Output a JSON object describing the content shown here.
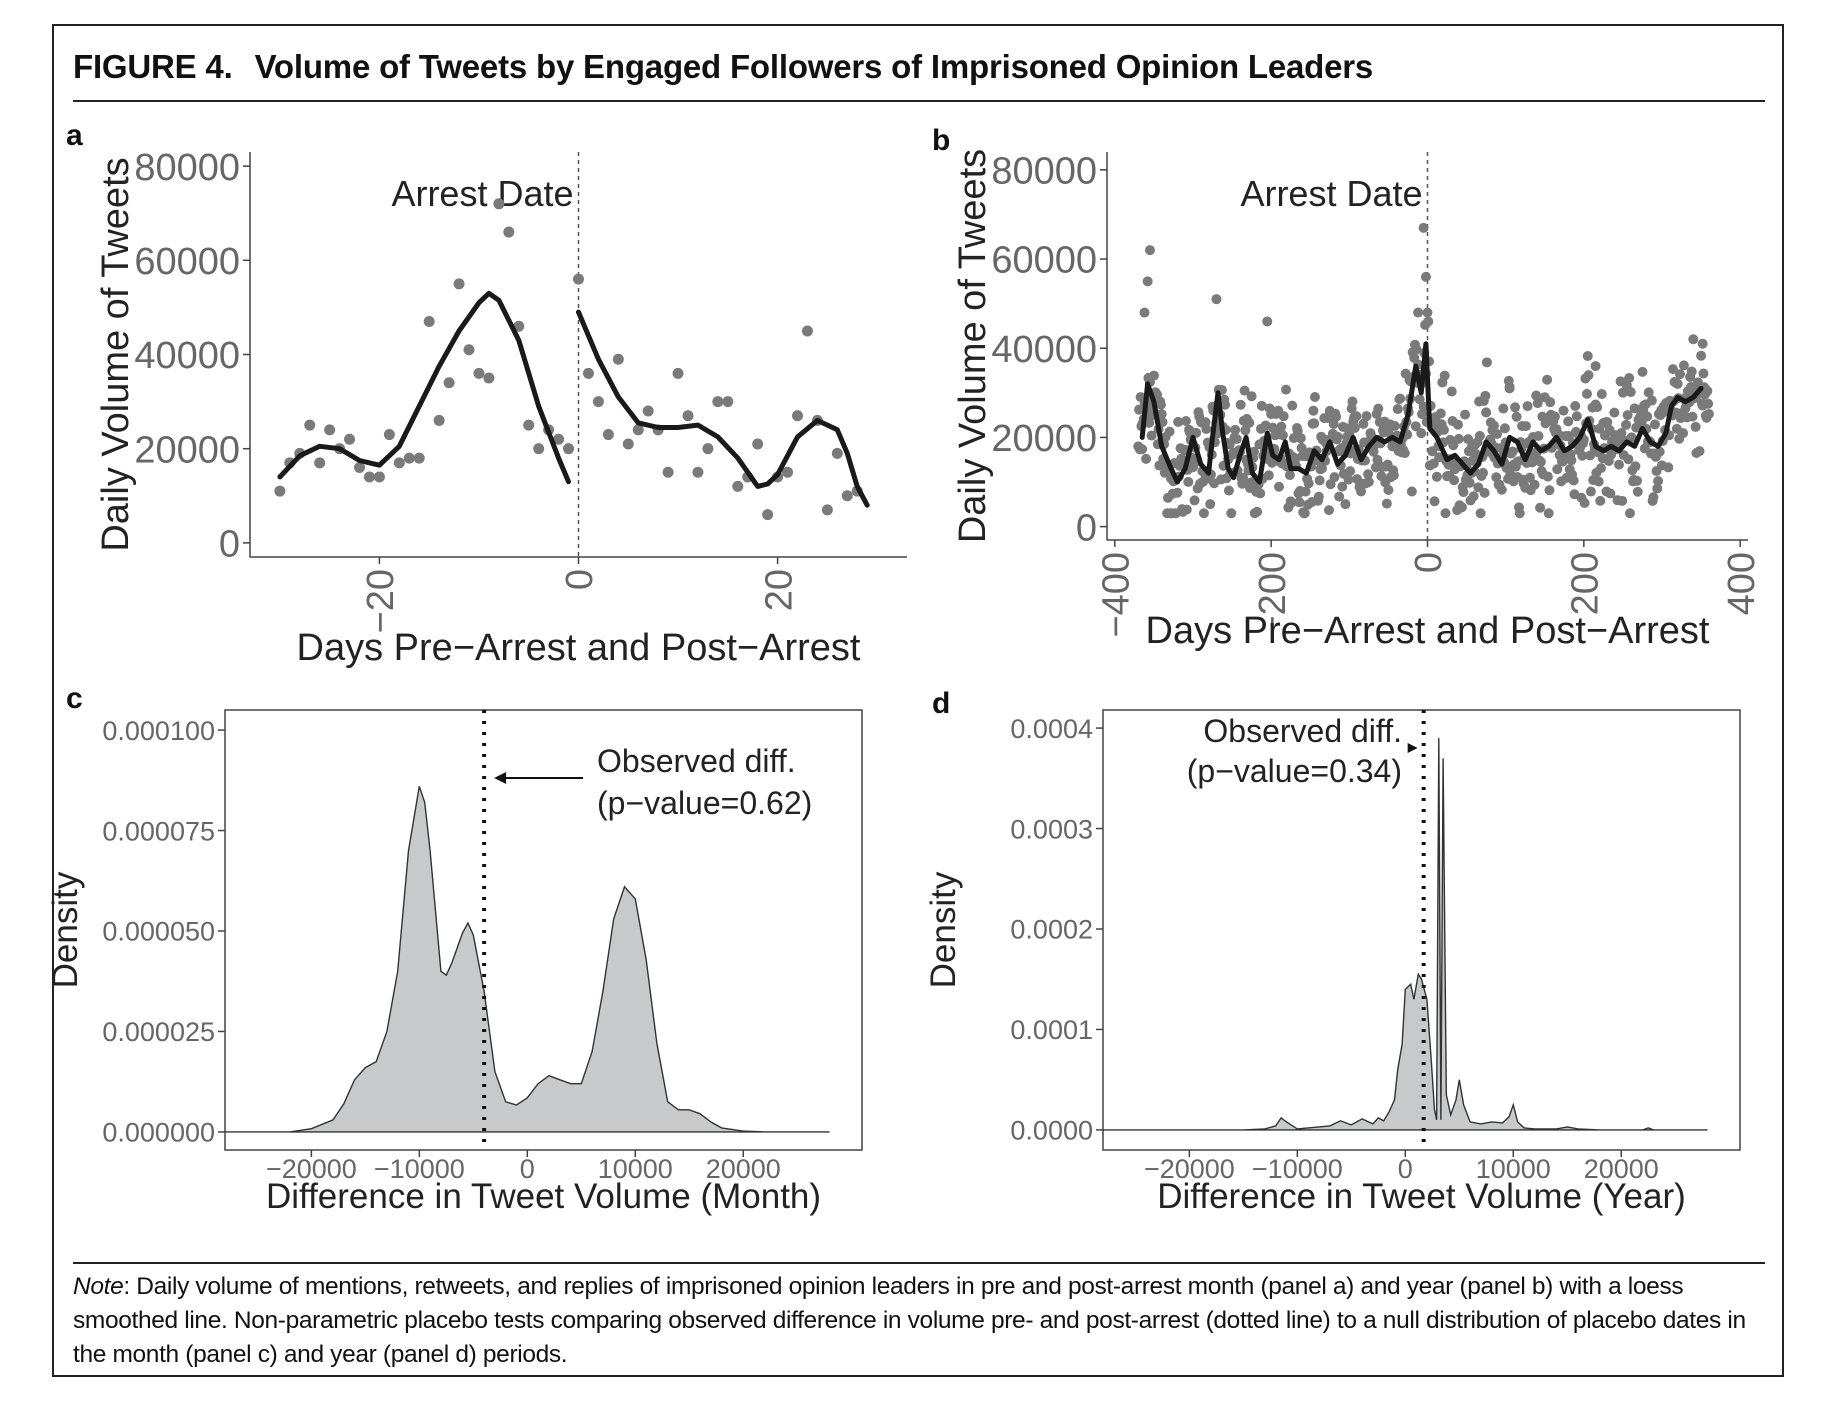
{
  "figure": {
    "label": "FIGURE 4.",
    "title": "Volume of Tweets by Engaged Followers of Imprisoned Opinion Leaders",
    "note_lead": "Note",
    "note_text": ": Daily volume of mentions, retweets, and replies of imprisoned opinion leaders in pre and post-arrest month (panel a) and year (panel b) with a loess smoothed line. Non-parametric placebo tests comparing observed difference in volume pre- and post-arrest (dotted line) to a null distribution of placebo dates in the month (panel c) and year (panel d) periods."
  },
  "chart_data": [
    {
      "panel": "a",
      "type": "scatter",
      "annotation": "Arrest Date",
      "xlabel": "Days Pre−Arrest and Post−Arrest",
      "ylabel": "Daily Volume of Tweets",
      "xlim": [
        -33,
        33
      ],
      "ylim": [
        -3000,
        83000
      ],
      "xticks": [
        -20,
        0,
        20
      ],
      "xtick_labels": [
        "−20",
        "0",
        "20"
      ],
      "yticks": [
        0,
        20000,
        40000,
        60000,
        80000
      ],
      "ytick_labels": [
        "0",
        "20000",
        "40000",
        "60000",
        "80000"
      ],
      "vline_x": 0,
      "grid": false,
      "points": [
        [
          -30,
          11000
        ],
        [
          -29,
          17000
        ],
        [
          -28,
          19000
        ],
        [
          -27,
          25000
        ],
        [
          -26,
          17000
        ],
        [
          -25,
          24000
        ],
        [
          -24,
          20000
        ],
        [
          -23,
          22000
        ],
        [
          -22,
          16000
        ],
        [
          -21,
          14000
        ],
        [
          -20,
          14000
        ],
        [
          -19,
          23000
        ],
        [
          -18,
          17000
        ],
        [
          -17,
          18000
        ],
        [
          -16,
          18000
        ],
        [
          -15,
          47000
        ],
        [
          -14,
          26000
        ],
        [
          -13,
          34000
        ],
        [
          -12,
          55000
        ],
        [
          -11,
          41000
        ],
        [
          -10,
          36000
        ],
        [
          -9,
          35000
        ],
        [
          -8,
          72000
        ],
        [
          -7,
          66000
        ],
        [
          -6,
          46000
        ],
        [
          -5,
          25000
        ],
        [
          -4,
          20000
        ],
        [
          -3,
          24000
        ],
        [
          -2,
          22000
        ],
        [
          -1,
          20000
        ],
        [
          0,
          56000
        ],
        [
          1,
          36000
        ],
        [
          2,
          30000
        ],
        [
          3,
          23000
        ],
        [
          4,
          39000
        ],
        [
          5,
          21000
        ],
        [
          6,
          24000
        ],
        [
          7,
          28000
        ],
        [
          8,
          24000
        ],
        [
          9,
          15000
        ],
        [
          10,
          36000
        ],
        [
          11,
          27000
        ],
        [
          12,
          15000
        ],
        [
          13,
          20000
        ],
        [
          14,
          30000
        ],
        [
          15,
          30000
        ],
        [
          16,
          12000
        ],
        [
          17,
          14000
        ],
        [
          18,
          21000
        ],
        [
          19,
          6000
        ],
        [
          20,
          14000
        ],
        [
          21,
          15000
        ],
        [
          22,
          27000
        ],
        [
          23,
          45000
        ],
        [
          24,
          26000
        ],
        [
          25,
          7000
        ],
        [
          26,
          19000
        ],
        [
          27,
          10000
        ],
        [
          28,
          11000
        ]
      ],
      "smooth_pre": [
        [
          -30,
          14000
        ],
        [
          -28,
          18500
        ],
        [
          -26,
          20500
        ],
        [
          -24,
          20000
        ],
        [
          -22,
          17500
        ],
        [
          -20,
          16500
        ],
        [
          -18,
          20500
        ],
        [
          -16,
          29000
        ],
        [
          -14,
          37500
        ],
        [
          -12,
          45000
        ],
        [
          -10,
          51000
        ],
        [
          -9,
          53000
        ],
        [
          -8,
          51500
        ],
        [
          -6,
          43000
        ],
        [
          -4,
          29000
        ],
        [
          -2,
          18000
        ],
        [
          -1,
          13000
        ]
      ],
      "smooth_post": [
        [
          0,
          49000
        ],
        [
          2,
          39000
        ],
        [
          4,
          31000
        ],
        [
          6,
          25500
        ],
        [
          8,
          24500
        ],
        [
          10,
          24500
        ],
        [
          12,
          25000
        ],
        [
          14,
          22500
        ],
        [
          16,
          18000
        ],
        [
          18,
          12000
        ],
        [
          19,
          12500
        ],
        [
          20,
          14500
        ],
        [
          22,
          22500
        ],
        [
          24,
          26000
        ],
        [
          26,
          24000
        ],
        [
          27,
          19000
        ],
        [
          28,
          12000
        ],
        [
          29,
          8000
        ]
      ]
    },
    {
      "panel": "b",
      "type": "scatter",
      "annotation": "Arrest Date",
      "xlabel": "Days Pre−Arrest and Post−Arrest",
      "ylabel": "Daily Volume of Tweets",
      "xlim": [
        -410,
        410
      ],
      "ylim": [
        -3000,
        84000
      ],
      "xticks": [
        -400,
        -200,
        0,
        200,
        400
      ],
      "xtick_labels": [
        "−400",
        "−200",
        "0",
        "200",
        "400"
      ],
      "yticks": [
        0,
        20000,
        40000,
        60000,
        80000
      ],
      "ytick_labels": [
        "0",
        "20000",
        "40000",
        "60000",
        "80000"
      ],
      "vline_x": 0,
      "grid": false,
      "point_range": {
        "x": [
          -370,
          360
        ],
        "y": [
          3000,
          62000
        ]
      },
      "smooth": [
        [
          -365,
          20000
        ],
        [
          -358,
          32000
        ],
        [
          -350,
          28000
        ],
        [
          -340,
          18000
        ],
        [
          -328,
          13000
        ],
        [
          -320,
          10000
        ],
        [
          -310,
          13000
        ],
        [
          -300,
          20000
        ],
        [
          -290,
          14000
        ],
        [
          -280,
          12000
        ],
        [
          -275,
          20000
        ],
        [
          -268,
          30000
        ],
        [
          -262,
          21000
        ],
        [
          -255,
          13000
        ],
        [
          -248,
          11000
        ],
        [
          -240,
          16000
        ],
        [
          -232,
          20000
        ],
        [
          -224,
          12000
        ],
        [
          -215,
          10000
        ],
        [
          -205,
          21000
        ],
        [
          -198,
          16000
        ],
        [
          -190,
          15000
        ],
        [
          -182,
          19000
        ],
        [
          -175,
          13000
        ],
        [
          -165,
          13000
        ],
        [
          -155,
          12000
        ],
        [
          -145,
          17000
        ],
        [
          -135,
          15000
        ],
        [
          -125,
          19000
        ],
        [
          -115,
          14000
        ],
        [
          -105,
          16000
        ],
        [
          -95,
          20000
        ],
        [
          -85,
          15000
        ],
        [
          -75,
          18000
        ],
        [
          -65,
          20000
        ],
        [
          -55,
          19000
        ],
        [
          -45,
          20000
        ],
        [
          -35,
          19000
        ],
        [
          -25,
          25000
        ],
        [
          -15,
          36000
        ],
        [
          -8,
          30000
        ],
        [
          -2,
          41000
        ],
        [
          3,
          22000
        ],
        [
          12,
          20000
        ],
        [
          25,
          15000
        ],
        [
          35,
          16000
        ],
        [
          45,
          14000
        ],
        [
          55,
          12000
        ],
        [
          65,
          14000
        ],
        [
          75,
          19000
        ],
        [
          85,
          17000
        ],
        [
          95,
          14000
        ],
        [
          105,
          20000
        ],
        [
          115,
          19000
        ],
        [
          125,
          15000
        ],
        [
          135,
          19000
        ],
        [
          145,
          17000
        ],
        [
          155,
          18000
        ],
        [
          165,
          20000
        ],
        [
          175,
          17000
        ],
        [
          185,
          18000
        ],
        [
          195,
          20000
        ],
        [
          205,
          24000
        ],
        [
          215,
          18000
        ],
        [
          225,
          17000
        ],
        [
          235,
          18000
        ],
        [
          245,
          17000
        ],
        [
          255,
          19000
        ],
        [
          265,
          18000
        ],
        [
          275,
          22000
        ],
        [
          285,
          19000
        ],
        [
          295,
          18000
        ],
        [
          305,
          21000
        ],
        [
          312,
          27000
        ],
        [
          320,
          29000
        ],
        [
          330,
          28000
        ],
        [
          340,
          29000
        ],
        [
          350,
          31000
        ]
      ]
    },
    {
      "panel": "c",
      "type": "area",
      "annotation": "Observed diff.\n(p−value=0.62)",
      "xlabel": "Difference in Tweet Volume (Month)",
      "ylabel": "Density",
      "xlim": [
        -28000,
        31000
      ],
      "ylim": [
        -4.5e-06,
        0.000105
      ],
      "xticks": [
        -20000,
        -10000,
        0,
        10000,
        20000
      ],
      "xtick_labels": [
        "−20000",
        "−10000",
        "0",
        "10000",
        "20000"
      ],
      "yticks": [
        0,
        2.5e-05,
        5e-05,
        7.5e-05,
        0.0001
      ],
      "ytick_labels": [
        "0.000000",
        "0.000025",
        "0.000050",
        "0.000075",
        "0.000100"
      ],
      "observed_x": -4000,
      "grid": false,
      "density": [
        [
          -28000,
          0
        ],
        [
          -25000,
          0
        ],
        [
          -22000,
          0
        ],
        [
          -20000,
          8e-07
        ],
        [
          -18000,
          3e-06
        ],
        [
          -17000,
          7e-06
        ],
        [
          -16000,
          1.3e-05
        ],
        [
          -15000,
          1.6e-05
        ],
        [
          -14000,
          1.75e-05
        ],
        [
          -13000,
          2.5e-05
        ],
        [
          -12000,
          4e-05
        ],
        [
          -11000,
          7e-05
        ],
        [
          -10000,
          8.6e-05
        ],
        [
          -9500,
          8.2e-05
        ],
        [
          -9000,
          7e-05
        ],
        [
          -8000,
          4e-05
        ],
        [
          -7500,
          3.9e-05
        ],
        [
          -7000,
          4.2e-05
        ],
        [
          -6000,
          4.95e-05
        ],
        [
          -5500,
          5.2e-05
        ],
        [
          -5000,
          4.9e-05
        ],
        [
          -4000,
          3.5e-05
        ],
        [
          -3000,
          1.5e-05
        ],
        [
          -2000,
          7.5e-06
        ],
        [
          -1000,
          6.7e-06
        ],
        [
          0,
          8.5e-06
        ],
        [
          1000,
          1.2e-05
        ],
        [
          2000,
          1.4e-05
        ],
        [
          3000,
          1.3e-05
        ],
        [
          4000,
          1.2e-05
        ],
        [
          5000,
          1.2e-05
        ],
        [
          6000,
          2e-05
        ],
        [
          7000,
          3.5e-05
        ],
        [
          8000,
          5.3e-05
        ],
        [
          9000,
          6.1e-05
        ],
        [
          10000,
          5.8e-05
        ],
        [
          11000,
          4.3e-05
        ],
        [
          12000,
          2.2e-05
        ],
        [
          13000,
          7.5e-06
        ],
        [
          14000,
          5.5e-06
        ],
        [
          15000,
          5.5e-06
        ],
        [
          16000,
          4.5e-06
        ],
        [
          17000,
          2.5e-06
        ],
        [
          18000,
          1e-06
        ],
        [
          20000,
          2e-07
        ],
        [
          22000,
          0
        ],
        [
          25000,
          0
        ],
        [
          28000,
          0
        ]
      ]
    },
    {
      "panel": "d",
      "type": "area",
      "annotation": "Observed diff.\n(p−value=0.34)",
      "xlabel": "Difference in Tweet Volume (Year)",
      "ylabel": "Density",
      "xlim": [
        -28000,
        31000
      ],
      "ylim": [
        -2e-05,
        0.000418
      ],
      "xticks": [
        -20000,
        -10000,
        0,
        10000,
        20000
      ],
      "xtick_labels": [
        "−20000",
        "−10000",
        "0",
        "10000",
        "20000"
      ],
      "yticks": [
        0,
        0.0001,
        0.0002,
        0.0003,
        0.0004
      ],
      "ytick_labels": [
        "0.0000",
        "0.0001",
        "0.0002",
        "0.0003",
        "0.0004"
      ],
      "observed_x": 1700,
      "grid": false,
      "density": [
        [
          -28000,
          0
        ],
        [
          -20000,
          0
        ],
        [
          -15000,
          0
        ],
        [
          -13000,
          1e-06
        ],
        [
          -12000,
          4e-06
        ],
        [
          -11500,
          1.2e-05
        ],
        [
          -11000,
          8e-06
        ],
        [
          -10000,
          1e-06
        ],
        [
          -8000,
          3e-06
        ],
        [
          -7000,
          4e-06
        ],
        [
          -6000,
          9e-06
        ],
        [
          -5000,
          5e-06
        ],
        [
          -4000,
          1.1e-05
        ],
        [
          -3000,
          6e-06
        ],
        [
          -2500,
          1.2e-05
        ],
        [
          -2000,
          9e-06
        ],
        [
          -1500,
          1.8e-05
        ],
        [
          -1000,
          3e-05
        ],
        [
          -700,
          6e-05
        ],
        [
          -300,
          8.5e-05
        ],
        [
          0,
          0.00014
        ],
        [
          500,
          0.000145
        ],
        [
          800,
          0.00013
        ],
        [
          1200,
          0.000155
        ],
        [
          1500,
          0.00015
        ],
        [
          2000,
          0.00013
        ],
        [
          2400,
          7e-05
        ],
        [
          2700,
          2e-05
        ],
        [
          2900,
          1e-05
        ],
        [
          3100,
          0.00039
        ],
        [
          3300,
          1e-05
        ],
        [
          3500,
          0.00037
        ],
        [
          3800,
          3.5e-05
        ],
        [
          4200,
          1.5e-05
        ],
        [
          4700,
          3e-05
        ],
        [
          5000,
          5e-05
        ],
        [
          5400,
          2.5e-05
        ],
        [
          6000,
          8e-06
        ],
        [
          7000,
          6e-06
        ],
        [
          8000,
          8e-06
        ],
        [
          9000,
          7e-06
        ],
        [
          9600,
          1.3e-05
        ],
        [
          10000,
          2.5e-05
        ],
        [
          10400,
          8e-06
        ],
        [
          11000,
          2e-06
        ],
        [
          12000,
          1e-06
        ],
        [
          14000,
          1e-06
        ],
        [
          15000,
          3e-06
        ],
        [
          16000,
          1e-06
        ],
        [
          18000,
          0
        ],
        [
          22000,
          0
        ],
        [
          22500,
          2e-06
        ],
        [
          23000,
          0
        ],
        [
          28000,
          0
        ]
      ]
    }
  ]
}
